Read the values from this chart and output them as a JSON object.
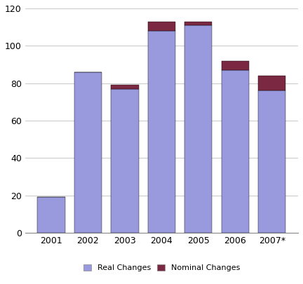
{
  "categories": [
    "2001",
    "2002",
    "2003",
    "2004",
    "2005",
    "2006",
    "2007*"
  ],
  "real_changes": [
    19,
    86,
    77,
    108,
    111,
    87,
    76
  ],
  "nominal_changes": [
    0,
    0,
    2,
    5,
    2,
    5,
    8
  ],
  "real_color": "#9999DD",
  "nominal_color": "#7B2842",
  "bar_edge_color": "#000000",
  "bar_edge_width": 0.3,
  "ylim": [
    0,
    120
  ],
  "yticks": [
    0,
    20,
    40,
    60,
    80,
    100,
    120
  ],
  "legend_real": "Real Changes",
  "legend_nominal": "Nominal Changes",
  "background_color": "#ffffff",
  "grid_color": "#cccccc",
  "figsize": [
    4.32,
    4.05
  ],
  "dpi": 100
}
